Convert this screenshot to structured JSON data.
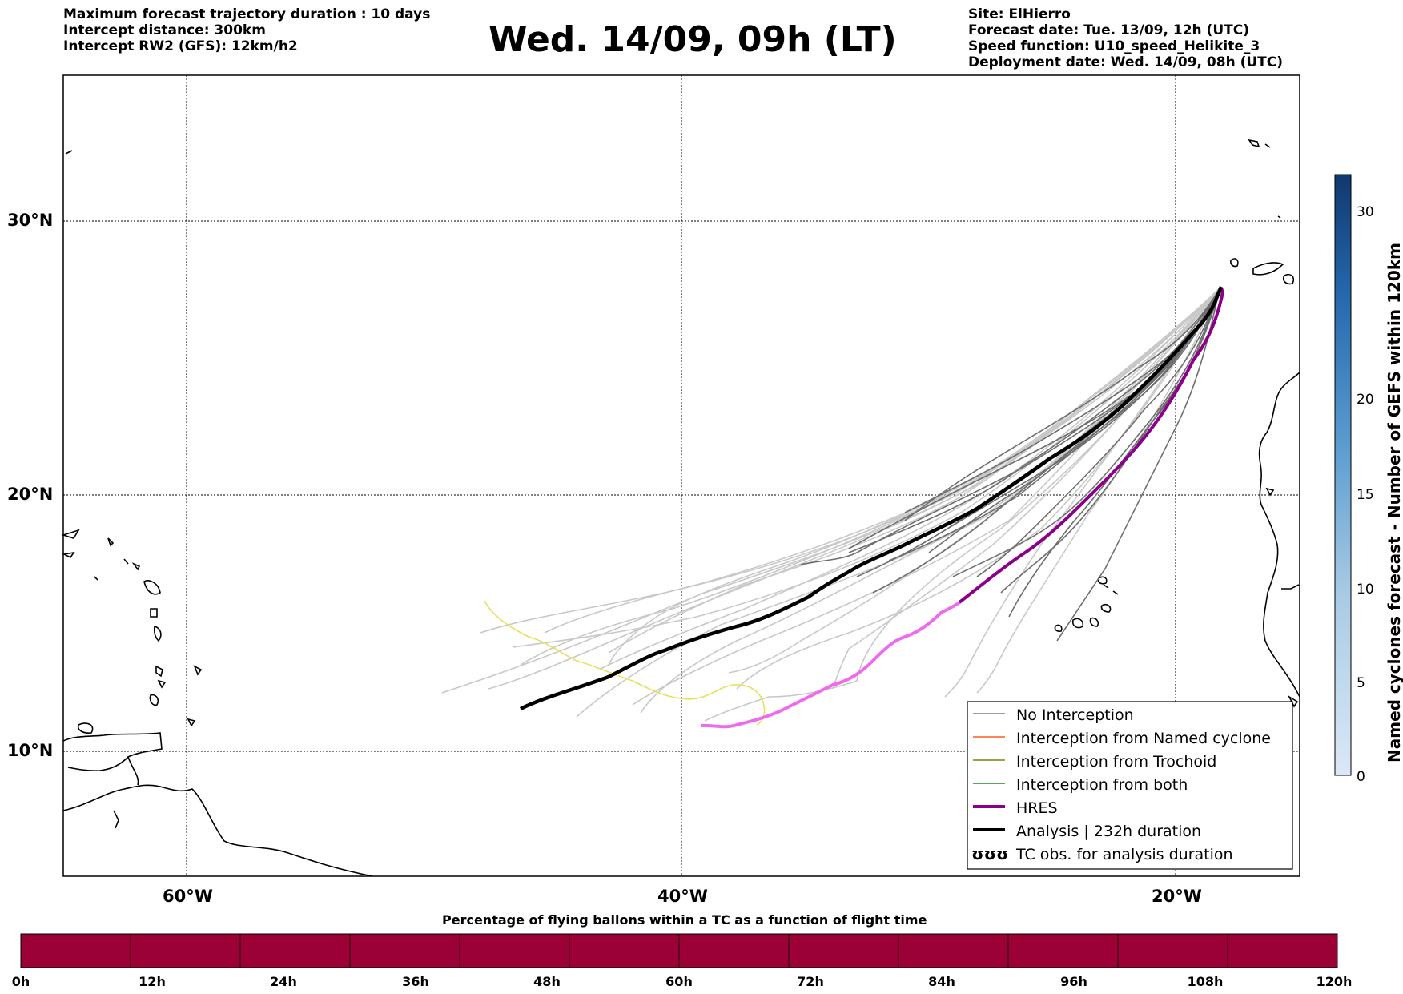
{
  "header": {
    "left": [
      "Maximum forecast trajectory duration : 10 days",
      "Intercept distance: 300km",
      "Intercept RW2 (GFS):  12km/h2"
    ],
    "title": "Wed. 14/09, 09h (LT)",
    "right": [
      "Site: ElHierro",
      "Forecast date: Tue. 13/09, 12h (UTC)",
      "Speed function: U10_speed_Helikite_3",
      "Deployment date: Wed. 14/09, 08h (UTC)"
    ]
  },
  "map": {
    "lat_labels": [
      "30°N",
      "20°N",
      "10°N"
    ],
    "lon_labels": [
      "60°W",
      "40°W",
      "20°W"
    ],
    "legend": [
      {
        "label": "No Interception",
        "color": "#808080",
        "style": "thin"
      },
      {
        "label": "Interception from Named cyclone",
        "color": "#ff5a1e",
        "style": "thin"
      },
      {
        "label": "Interception from Trochoid",
        "color": "#808000",
        "style": "thin"
      },
      {
        "label": "Interception from both",
        "color": "#228b22",
        "style": "thin"
      },
      {
        "label": "HRES",
        "color": "#8b008b",
        "style": "thick"
      },
      {
        "label": "Analysis | 232h duration",
        "color": "#000000",
        "style": "thick"
      },
      {
        "label": "TC obs. for analysis duration",
        "color": "#000000",
        "style": "symbol"
      }
    ]
  },
  "colorbar": {
    "label": "Named cyclones forecast - Number of GEFS within 120km",
    "ticks": [
      "30",
      "20",
      "15",
      "10",
      "5",
      "0"
    ],
    "min": 0,
    "max": 32,
    "colors": [
      "#dbe8f6",
      "#1b4f8f"
    ]
  },
  "percentage_bar": {
    "title": "Percentage of flying ballons within a TC as a function of flight time",
    "color": "#9b0036",
    "ticks": [
      "0h",
      "12h",
      "24h",
      "36h",
      "48h",
      "60h",
      "72h",
      "84h",
      "96h",
      "108h",
      "120h"
    ]
  }
}
